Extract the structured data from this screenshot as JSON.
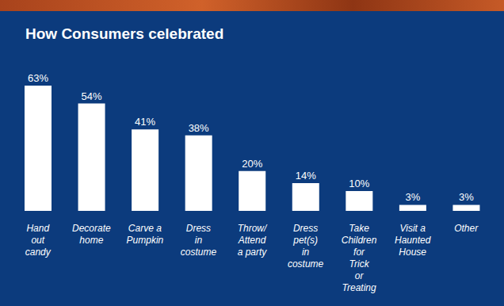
{
  "chart_data": {
    "type": "bar",
    "title": "How Consumers celebrated",
    "categories": [
      "Hand out candy",
      "Decorate home",
      "Carve a Pumpkin",
      "Dress in costume",
      "Throw/ Attend a party",
      "Dress pet(s) in costume",
      "Take Children for Trick or Treating",
      "Visit a Haunted House",
      "Other"
    ],
    "values": [
      63,
      54,
      41,
      38,
      20,
      14,
      10,
      3,
      3
    ],
    "value_labels": [
      "63%",
      "54%",
      "41%",
      "38%",
      "20%",
      "14%",
      "10%",
      "3%",
      "3%"
    ],
    "color": "#ffffff",
    "data_labels": true,
    "tick_labels": "x",
    "grid": false
  }
}
